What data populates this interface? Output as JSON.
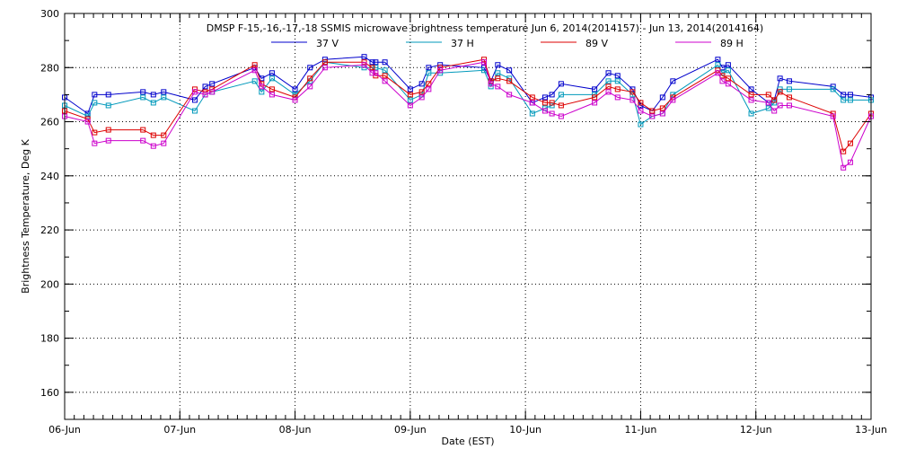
{
  "chart_data": {
    "type": "line",
    "title": "DMSP F-15,-16,-17,-18 SSMIS microwave brightness temperature Jun  6, 2014(2014157) - Jun 13, 2014(2014164)",
    "xlabel": "Date (EST)",
    "ylabel": "Brightness Temperature, Deg K",
    "xlim": [
      "2014-06-06",
      "2014-06-13"
    ],
    "ylim": [
      150,
      300
    ],
    "x_ticks": [
      "06-Jun",
      "07-Jun",
      "08-Jun",
      "09-Jun",
      "10-Jun",
      "11-Jun",
      "12-Jun",
      "13-Jun"
    ],
    "y_ticks": [
      160,
      180,
      200,
      220,
      240,
      260,
      280,
      300
    ],
    "grid": true,
    "legend_position": "top-center",
    "x": [
      "2014-06-06 00:00",
      "2014-06-06 04:48",
      "2014-06-06 06:14",
      "2014-06-06 09:07",
      "2014-06-06 16:19",
      "2014-06-06 18:29",
      "2014-06-06 20:38",
      "2014-06-07 03:07",
      "2014-06-07 05:17",
      "2014-06-07 06:43",
      "2014-06-07 15:36",
      "2014-06-07 17:02",
      "2014-06-07 19:12",
      "2014-06-08 00:00",
      "2014-06-08 03:07",
      "2014-06-08 06:14",
      "2014-06-08 14:24",
      "2014-06-08 16:05",
      "2014-06-08 16:48",
      "2014-06-08 18:43",
      "2014-06-09 00:00",
      "2014-06-09 02:24",
      "2014-06-09 03:50",
      "2014-06-09 06:14",
      "2014-06-09 15:22",
      "2014-06-09 16:48",
      "2014-06-09 18:14",
      "2014-06-09 20:38",
      "2014-06-10 01:26",
      "2014-06-10 04:05",
      "2014-06-10 05:31",
      "2014-06-10 07:26",
      "2014-06-10 14:24",
      "2014-06-10 17:17",
      "2014-06-10 19:12",
      "2014-06-10 22:19",
      "2014-06-11 00:00",
      "2014-06-11 02:24",
      "2014-06-11 04:34",
      "2014-06-11 06:43",
      "2014-06-11 16:05",
      "2014-06-11 17:02",
      "2014-06-11 18:14",
      "2014-06-11 23:02",
      "2014-06-12 02:38",
      "2014-06-12 03:50",
      "2014-06-12 05:02",
      "2014-06-12 06:58",
      "2014-06-12 16:05",
      "2014-06-12 18:14",
      "2014-06-12 19:41",
      "2014-06-13 00:00"
    ],
    "series": [
      {
        "name": "37 V",
        "color": "#0000cc",
        "values": [
          269,
          263,
          270,
          270,
          271,
          270,
          271,
          268,
          273,
          274,
          280,
          276,
          278,
          272,
          280,
          283,
          284,
          282,
          282,
          282,
          272,
          274,
          280,
          281,
          280,
          275,
          281,
          279,
          267,
          269,
          270,
          274,
          272,
          278,
          277,
          272,
          266,
          264,
          269,
          275,
          283,
          280,
          281,
          272,
          267,
          268,
          276,
          275,
          273,
          270,
          270,
          269
        ]
      },
      {
        "name": "37 H",
        "color": "#0099bb",
        "values": [
          266,
          262,
          267,
          266,
          269,
          267,
          269,
          264,
          270,
          271,
          275,
          271,
          276,
          270,
          275,
          282,
          280,
          280,
          280,
          279,
          268,
          270,
          278,
          278,
          279,
          273,
          278,
          276,
          263,
          265,
          266,
          270,
          270,
          275,
          275,
          270,
          259,
          262,
          263,
          270,
          281,
          278,
          279,
          263,
          265,
          267,
          272,
          272,
          272,
          268,
          268,
          268
        ]
      },
      {
        "name": "89 V",
        "color": "#dd0000",
        "values": [
          264,
          261,
          256,
          257,
          257,
          255,
          255,
          272,
          271,
          272,
          281,
          274,
          272,
          269,
          276,
          282,
          282,
          280,
          277,
          277,
          270,
          271,
          274,
          280,
          283,
          275,
          276,
          275,
          269,
          267,
          267,
          266,
          269,
          273,
          272,
          271,
          267,
          264,
          265,
          269,
          279,
          277,
          276,
          270,
          270,
          268,
          271,
          269,
          263,
          249,
          252,
          263
        ]
      },
      {
        "name": "89 H",
        "color": "#cc00cc",
        "values": [
          262,
          260,
          252,
          253,
          253,
          251,
          252,
          271,
          270,
          271,
          279,
          273,
          270,
          268,
          273,
          280,
          281,
          278,
          278,
          275,
          266,
          269,
          272,
          279,
          282,
          274,
          273,
          270,
          267,
          264,
          263,
          262,
          267,
          271,
          269,
          268,
          264,
          262,
          263,
          268,
          278,
          275,
          274,
          268,
          267,
          264,
          266,
          266,
          262,
          243,
          245,
          262
        ]
      }
    ]
  }
}
